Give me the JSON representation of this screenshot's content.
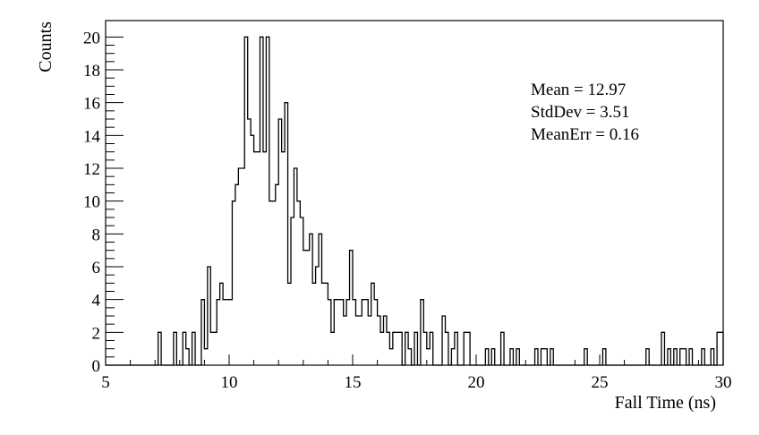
{
  "chart_data": {
    "type": "histogram",
    "title": "",
    "xlabel": "Fall Time (ns)",
    "ylabel": "Counts",
    "xlim": [
      5,
      30
    ],
    "ylim": [
      0,
      21
    ],
    "grid": false,
    "bin_width": 0.125,
    "x_ticks": [
      5,
      10,
      15,
      20,
      25,
      30
    ],
    "y_ticks": [
      0,
      2,
      4,
      6,
      8,
      10,
      12,
      14,
      16,
      18,
      20
    ],
    "bins": [
      [
        7.125,
        2
      ],
      [
        7.75,
        2
      ],
      [
        8.125,
        2
      ],
      [
        8.25,
        1
      ],
      [
        8.5,
        2
      ],
      [
        8.875,
        4
      ],
      [
        9.0,
        1
      ],
      [
        9.125,
        6
      ],
      [
        9.25,
        2
      ],
      [
        9.375,
        2
      ],
      [
        9.5,
        4
      ],
      [
        9.625,
        5
      ],
      [
        9.75,
        4
      ],
      [
        9.875,
        4
      ],
      [
        10.0,
        4
      ],
      [
        10.125,
        10
      ],
      [
        10.25,
        11
      ],
      [
        10.375,
        12
      ],
      [
        10.5,
        12
      ],
      [
        10.625,
        20
      ],
      [
        10.75,
        15
      ],
      [
        10.875,
        14
      ],
      [
        11.0,
        13
      ],
      [
        11.125,
        13
      ],
      [
        11.25,
        20
      ],
      [
        11.375,
        13
      ],
      [
        11.5,
        20
      ],
      [
        11.625,
        10
      ],
      [
        11.75,
        10
      ],
      [
        11.875,
        11
      ],
      [
        12.0,
        15
      ],
      [
        12.125,
        13
      ],
      [
        12.25,
        16
      ],
      [
        12.375,
        5
      ],
      [
        12.5,
        9
      ],
      [
        12.625,
        12
      ],
      [
        12.75,
        10
      ],
      [
        12.875,
        9
      ],
      [
        13.0,
        7
      ],
      [
        13.125,
        7
      ],
      [
        13.25,
        8
      ],
      [
        13.375,
        5
      ],
      [
        13.5,
        6
      ],
      [
        13.625,
        8
      ],
      [
        13.75,
        5
      ],
      [
        13.875,
        5
      ],
      [
        14.0,
        4
      ],
      [
        14.125,
        2
      ],
      [
        14.25,
        4
      ],
      [
        14.375,
        4
      ],
      [
        14.5,
        4
      ],
      [
        14.625,
        3
      ],
      [
        14.75,
        4
      ],
      [
        14.875,
        7
      ],
      [
        15.0,
        4
      ],
      [
        15.125,
        3
      ],
      [
        15.25,
        3
      ],
      [
        15.375,
        4
      ],
      [
        15.5,
        4
      ],
      [
        15.625,
        3
      ],
      [
        15.75,
        5
      ],
      [
        15.875,
        4
      ],
      [
        16.0,
        3
      ],
      [
        16.125,
        2
      ],
      [
        16.25,
        3
      ],
      [
        16.375,
        2
      ],
      [
        16.5,
        1
      ],
      [
        16.625,
        2
      ],
      [
        16.75,
        2
      ],
      [
        16.875,
        2
      ],
      [
        17.125,
        2
      ],
      [
        17.25,
        1
      ],
      [
        17.5,
        2
      ],
      [
        17.75,
        4
      ],
      [
        17.875,
        2
      ],
      [
        18.0,
        1
      ],
      [
        18.125,
        2
      ],
      [
        18.625,
        3
      ],
      [
        18.75,
        2
      ],
      [
        19.0,
        1
      ],
      [
        19.125,
        2
      ],
      [
        19.5,
        2
      ],
      [
        19.625,
        2
      ],
      [
        20.375,
        1
      ],
      [
        20.625,
        1
      ],
      [
        21.0,
        2
      ],
      [
        21.375,
        1
      ],
      [
        21.625,
        1
      ],
      [
        22.375,
        1
      ],
      [
        22.625,
        1
      ],
      [
        22.75,
        1
      ],
      [
        23.0,
        1
      ],
      [
        24.375,
        1
      ],
      [
        25.125,
        1
      ],
      [
        26.875,
        1
      ],
      [
        27.5,
        2
      ],
      [
        27.75,
        1
      ],
      [
        28.0,
        1
      ],
      [
        28.25,
        1
      ],
      [
        28.375,
        1
      ],
      [
        28.625,
        1
      ],
      [
        29.125,
        1
      ],
      [
        29.5,
        1
      ],
      [
        29.75,
        2
      ],
      [
        29.875,
        2
      ]
    ]
  },
  "stats": {
    "mean": "Mean = 12.97",
    "stddev": "StdDev = 3.51",
    "meanerr": "MeanErr = 0.16"
  }
}
